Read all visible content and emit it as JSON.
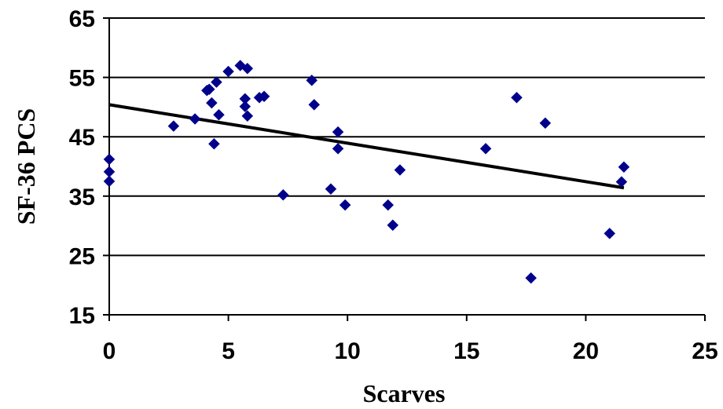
{
  "chart_data": {
    "type": "scatter",
    "title": "",
    "xlabel": "Scarves",
    "ylabel": "SF-36 PCS",
    "xlim": [
      0,
      25
    ],
    "ylim": [
      15,
      65
    ],
    "x_ticks": [
      0,
      5,
      10,
      15,
      20,
      25
    ],
    "y_ticks": [
      15,
      25,
      35,
      45,
      55,
      65
    ],
    "x_tick_labels": [
      "0",
      "5",
      "10",
      "15",
      "20",
      "25"
    ],
    "y_tick_labels": [
      "15",
      "25",
      "35",
      "45",
      "55",
      "65"
    ],
    "grid": "horizontal",
    "legend": "none",
    "marker": "diamond",
    "colors": {
      "marker": "#00008B",
      "trendline": "#000000",
      "grid": "#000000"
    },
    "series": [
      {
        "points": [
          [
            0.0,
            41.2
          ],
          [
            0.0,
            39.1
          ],
          [
            0.0,
            37.5
          ],
          [
            2.7,
            46.8
          ],
          [
            3.6,
            48.0
          ],
          [
            4.1,
            52.8
          ],
          [
            4.2,
            53.0
          ],
          [
            4.3,
            50.7
          ],
          [
            4.4,
            43.8
          ],
          [
            4.5,
            54.2
          ],
          [
            4.6,
            48.7
          ],
          [
            5.0,
            56.0
          ],
          [
            5.5,
            57.0
          ],
          [
            5.7,
            51.4
          ],
          [
            5.7,
            50.1
          ],
          [
            5.8,
            48.5
          ],
          [
            5.8,
            56.5
          ],
          [
            6.3,
            51.6
          ],
          [
            6.5,
            51.8
          ],
          [
            7.3,
            35.2
          ],
          [
            8.5,
            54.5
          ],
          [
            8.6,
            50.4
          ],
          [
            9.3,
            36.2
          ],
          [
            9.6,
            45.8
          ],
          [
            9.6,
            43.0
          ],
          [
            9.9,
            33.5
          ],
          [
            11.7,
            33.5
          ],
          [
            11.9,
            30.1
          ],
          [
            12.2,
            39.4
          ],
          [
            15.8,
            43.0
          ],
          [
            17.1,
            51.6
          ],
          [
            17.7,
            21.2
          ],
          [
            18.3,
            47.3
          ],
          [
            21.0,
            28.7
          ],
          [
            21.5,
            37.4
          ],
          [
            21.6,
            39.9
          ]
        ]
      }
    ],
    "trendline": {
      "x": [
        0,
        21.6
      ],
      "y": [
        50.4,
        36.4
      ]
    }
  }
}
